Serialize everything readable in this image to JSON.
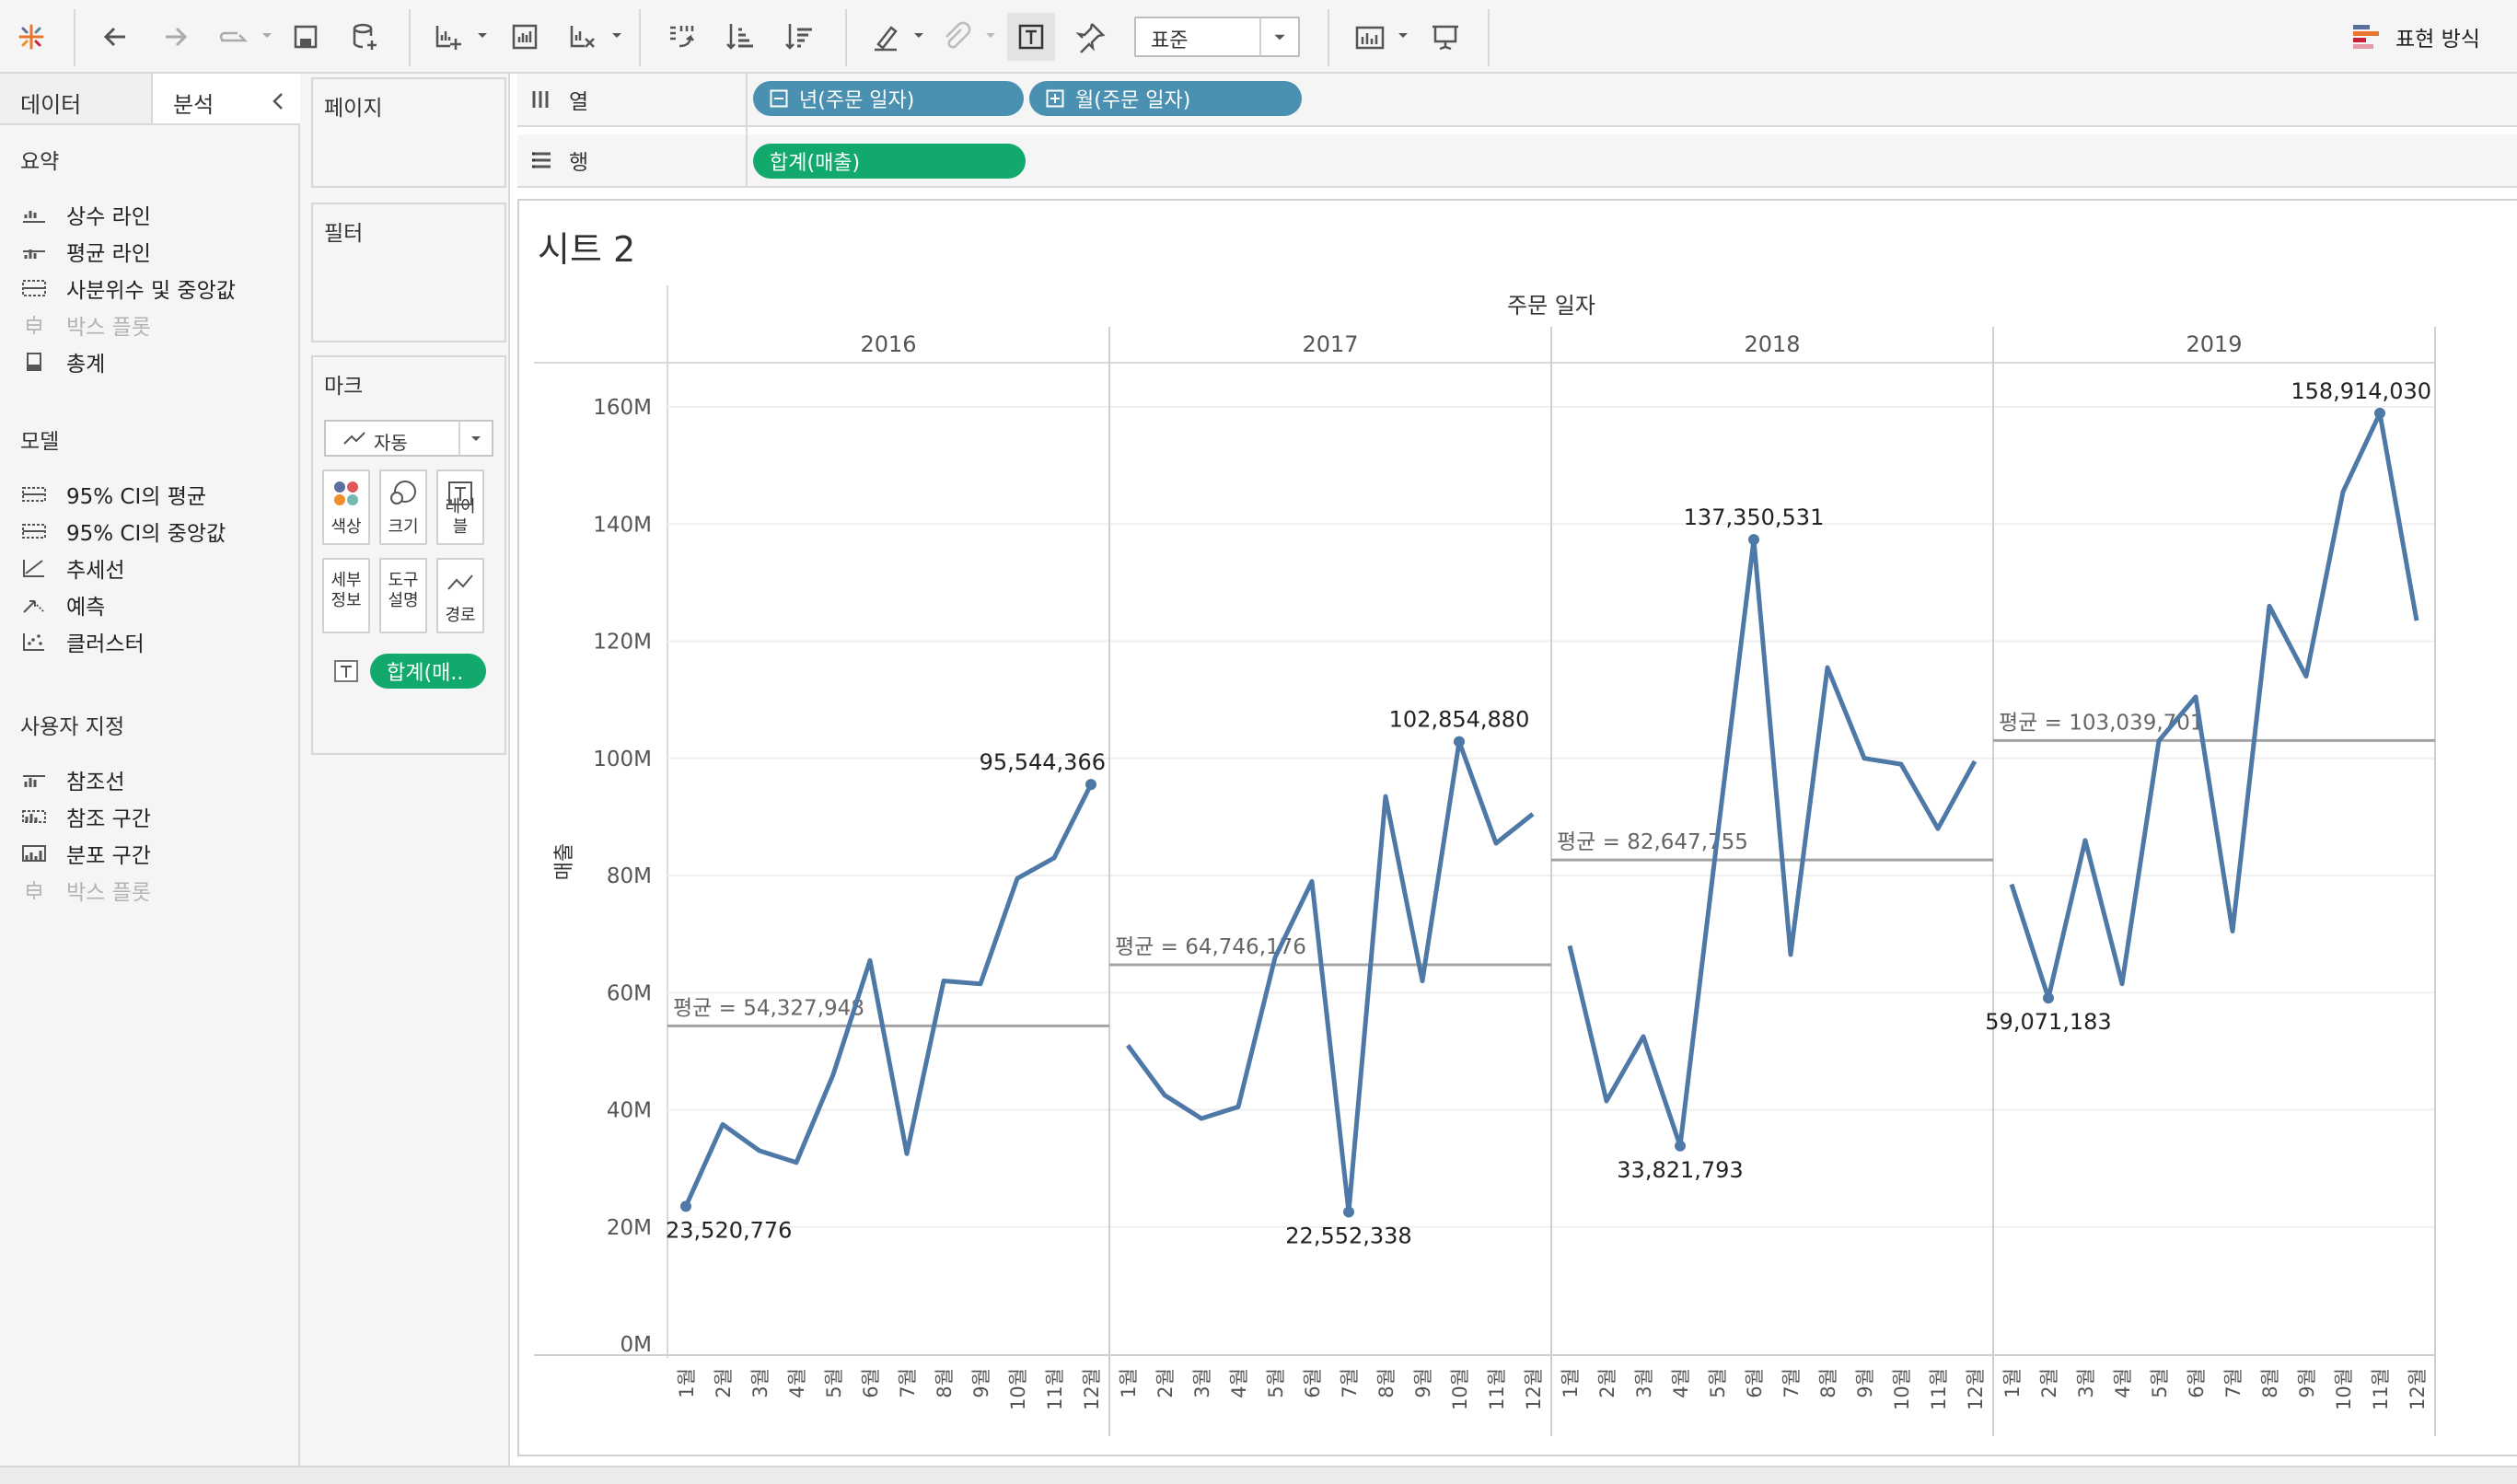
{
  "toolbar": {
    "fit_value": "표준",
    "show_me_label": "표현 방식"
  },
  "left_pane": {
    "tabs": [
      "데이터",
      "분석"
    ],
    "sections": [
      {
        "title": "요약",
        "items": [
          {
            "label": "상수 라인",
            "icon": "constant-line-icon",
            "enabled": true
          },
          {
            "label": "평균 라인",
            "icon": "average-line-icon",
            "enabled": true
          },
          {
            "label": "사분위수 및 중앙값",
            "icon": "quartile-icon",
            "enabled": true
          },
          {
            "label": "박스 플롯",
            "icon": "box-plot-icon",
            "enabled": false
          },
          {
            "label": "총계",
            "icon": "totals-icon",
            "enabled": true
          }
        ]
      },
      {
        "title": "모델",
        "items": [
          {
            "label": "95% CI의 평균",
            "icon": "ci-mean-icon",
            "enabled": true
          },
          {
            "label": "95% CI의 중앙값",
            "icon": "ci-median-icon",
            "enabled": true
          },
          {
            "label": "추세선",
            "icon": "trend-line-icon",
            "enabled": true
          },
          {
            "label": "예측",
            "icon": "forecast-icon",
            "enabled": true
          },
          {
            "label": "클러스터",
            "icon": "cluster-icon",
            "enabled": true
          }
        ]
      },
      {
        "title": "사용자 지정",
        "items": [
          {
            "label": "참조선",
            "icon": "reference-line-icon",
            "enabled": true
          },
          {
            "label": "참조 구간",
            "icon": "reference-band-icon",
            "enabled": true
          },
          {
            "label": "분포 구간",
            "icon": "distribution-band-icon",
            "enabled": true
          },
          {
            "label": "박스 플롯",
            "icon": "box-plot-icon",
            "enabled": false
          }
        ]
      }
    ]
  },
  "cards": {
    "pages": "페이지",
    "filters": "필터",
    "marks": {
      "title": "마크",
      "type": "자동",
      "buttons": [
        "색상",
        "크기",
        "레이블",
        "세부\n정보",
        "도구\n설명",
        "경로"
      ],
      "pill": "합계(매.."
    }
  },
  "shelves": {
    "columns_label": "열",
    "rows_label": "행",
    "columns_pills": [
      "년(주문 일자)",
      "월(주문 일자)"
    ],
    "rows_pills": [
      "합계(매출)"
    ]
  },
  "sheet_title": "시트 2",
  "chart_data": {
    "type": "line",
    "header_title": "주문 일자",
    "ylabel": "매출",
    "ylim": [
      0,
      160000000
    ],
    "y_ticks": [
      "0M",
      "20M",
      "40M",
      "60M",
      "80M",
      "100M",
      "120M",
      "140M",
      "160M"
    ],
    "month_labels": [
      "1월",
      "2월",
      "3월",
      "4월",
      "5월",
      "6월",
      "7월",
      "8월",
      "9월",
      "10월",
      "11월",
      "12월"
    ],
    "color": "#4e79a7",
    "panes": [
      {
        "year": "2016",
        "values": [
          23520776,
          37500000,
          33000000,
          31000000,
          46000000,
          65500000,
          32500000,
          62000000,
          61500000,
          79500000,
          83000000,
          95544366
        ],
        "average": 54327948,
        "average_label": "평균 = 54,327,948",
        "min_label": "23,520,776",
        "max_label": "95,544,366"
      },
      {
        "year": "2017",
        "values": [
          51000000,
          42500000,
          38500000,
          40500000,
          66000000,
          79000000,
          22552338,
          93500000,
          62000000,
          102854880,
          85500000,
          90500000
        ],
        "average": 64746176,
        "average_label": "평균 = 64,746,176",
        "min_label": "22,552,338",
        "max_label": "102,854,880"
      },
      {
        "year": "2018",
        "values": [
          68000000,
          41500000,
          52500000,
          33821793,
          86000000,
          137350531,
          66500000,
          115500000,
          100000000,
          99000000,
          88000000,
          99500000
        ],
        "average": 82647755,
        "average_label": "평균 = 82,647,755",
        "min_label": "33,821,793",
        "max_label": "137,350,531"
      },
      {
        "year": "2019",
        "values": [
          78500000,
          59071183,
          86000000,
          61500000,
          103000000,
          110500000,
          70500000,
          126000000,
          114000000,
          145500000,
          158914030,
          123500000
        ],
        "average": 103039701,
        "average_label": "평균 = 103,039,701",
        "min_label": "59,071,183",
        "max_label": "158,914,030"
      }
    ]
  }
}
